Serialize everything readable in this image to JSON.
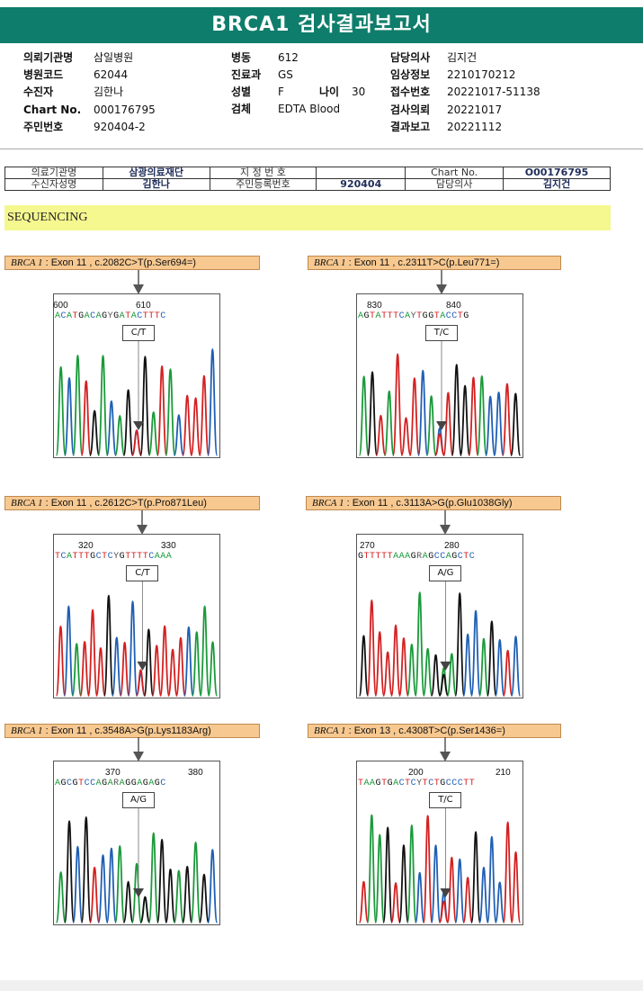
{
  "title": "BRCA1 검사결과보고서",
  "info": {
    "col1": [
      {
        "label": "의뢰기관명",
        "value": "삼일병원"
      },
      {
        "label": "병원코드",
        "value": "62044"
      },
      {
        "label": "수진자",
        "value": "김한나"
      },
      {
        "label": "Chart No.",
        "value": "000176795"
      },
      {
        "label": "주민번호",
        "value": "920404-2"
      }
    ],
    "col2": [
      {
        "label": "병동",
        "value": "612"
      },
      {
        "label": "진료과",
        "value": "GS"
      },
      {
        "label": "성별",
        "value": "F"
      },
      {
        "label": "검체",
        "value": "EDTA Blood"
      }
    ],
    "age": {
      "label": "나이",
      "value": "30"
    },
    "col3": [
      {
        "label": "담당의사",
        "value": "김지건"
      },
      {
        "label": "임상정보",
        "value": "2210170212"
      },
      {
        "label": "접수번호",
        "value": "20221017-51138"
      },
      {
        "label": "검사의뢰",
        "value": "20221017"
      },
      {
        "label": "결과보고",
        "value": "20221112"
      }
    ]
  },
  "patient_table": {
    "inst_label": "의료기관명",
    "inst_value": "삼광의료재단",
    "designated_label": "지 정 번 호",
    "designated_value": "",
    "chart_label": "Chart No.",
    "chart_value": "O00176795",
    "name_label": "수신자성명",
    "name_value": "김한나",
    "rrn_label": "주민등록번호",
    "rrn_value": "920404",
    "doctor_label": "담당의사",
    "doctor_value": "김지건"
  },
  "section_title": "SEQUENCING",
  "variants": [
    {
      "gene": "BRCA 1",
      "rest": " : Exon 11 , c.2082C>T(p.Ser694=)",
      "seq": "ACATGACAGYGATACTTTC",
      "pos1": "600",
      "pos2": "610",
      "genotype": "C/T"
    },
    {
      "gene": "BRCA 1",
      "rest": " : Exon 11 , c.2311T>C(p.Leu771=)",
      "seq": "AGTATTTCAYTGGTACCTG",
      "pos1": "830",
      "pos2": "840",
      "genotype": "T/C"
    },
    {
      "gene": "BRCA 1",
      "rest": " : Exon 11 , c.2612C>T(p.Pro871Leu)",
      "seq": "TCATTTGCTCYGTTTTCAAA",
      "pos1": "320",
      "pos2": "330",
      "genotype": "C/T"
    },
    {
      "gene": "BRCA 1",
      "rest": " : Exon 11 , c.3113A>G(p.Glu1038Gly)",
      "seq": "GTTTTTAAAGRAGCCAGCTC",
      "pos1": "270",
      "pos2": "280",
      "genotype": "A/G"
    },
    {
      "gene": "BRCA 1",
      "rest": " : Exon 11 , c.3548A>G(p.Lys1183Arg)",
      "seq": "AGCGTCCAGARAGGAGAGC",
      "pos1": "370",
      "pos2": "380",
      "genotype": "A/G"
    },
    {
      "gene": "BRCA 1",
      "rest": " : Exon 13 , c.4308T>C(p.Ser1436=)",
      "seq": "TAAGTGACTCYTCTGCCCTT",
      "pos1": "200",
      "pos2": "210",
      "genotype": "T/C"
    }
  ],
  "colors": {
    "header": "#0f7d6b",
    "A": "#1a9a3a",
    "C": "#1f5fb4",
    "G": "#111111",
    "T": "#d42020"
  }
}
